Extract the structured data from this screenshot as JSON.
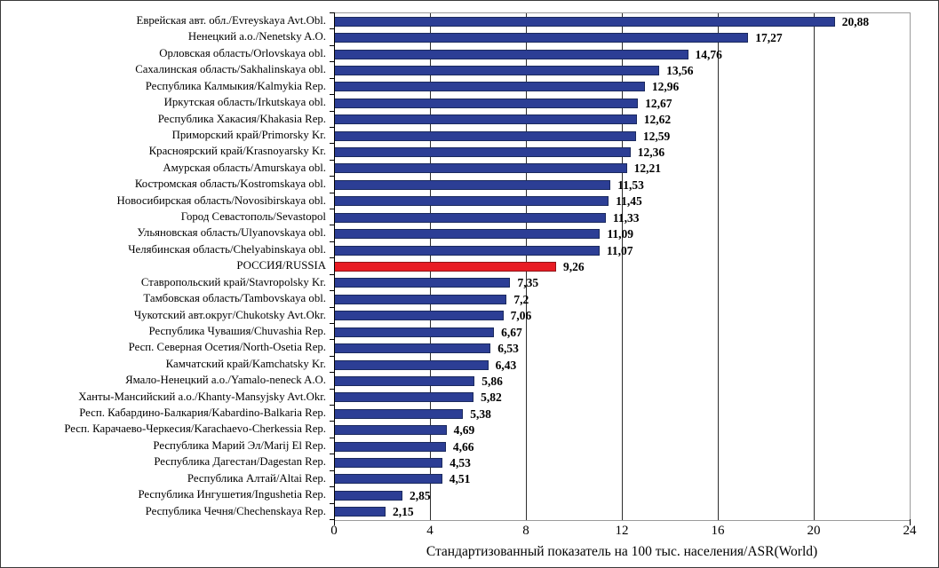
{
  "chart_data": {
    "type": "bar",
    "orientation": "horizontal",
    "title": "",
    "xlabel": "Стандартизованный показатель на 100 тыс. населения/ASR(World)",
    "xlim": [
      0,
      24
    ],
    "xticks": [
      0,
      4,
      8,
      12,
      16,
      20,
      24
    ],
    "grid": "vertical-gridlines-at-ticks",
    "legend": "none",
    "decimal_separator": ",",
    "bar_color": "#2c3e95",
    "bar_border_color": "#1b2a5e",
    "highlight_color": "#e81c24",
    "highlight_border_color": "#8f1418",
    "highlight_category": "РОССИЯ/RUSSIA",
    "rows": [
      {
        "label": "Еврейская авт. обл./Evreyskaya Avt.Obl.",
        "value": 20.88,
        "value_label": "20,88",
        "highlight": false
      },
      {
        "label": "Ненецкий а.о./Nenetsky A.O.",
        "value": 17.27,
        "value_label": "17,27",
        "highlight": false
      },
      {
        "label": "Орловская область/Orlovskaya obl.",
        "value": 14.76,
        "value_label": "14,76",
        "highlight": false
      },
      {
        "label": "Сахалинская область/Sakhalinskaya obl.",
        "value": 13.56,
        "value_label": "13,56",
        "highlight": false
      },
      {
        "label": "Республика Калмыкия/Kalmykia Rep.",
        "value": 12.96,
        "value_label": "12,96",
        "highlight": false
      },
      {
        "label": "Иркутская область/Irkutskaya obl.",
        "value": 12.67,
        "value_label": "12,67",
        "highlight": false
      },
      {
        "label": "Республика Хакасия/Khakasia Rep.",
        "value": 12.62,
        "value_label": "12,62",
        "highlight": false
      },
      {
        "label": "Приморский край/Primorsky Kr.",
        "value": 12.59,
        "value_label": "12,59",
        "highlight": false
      },
      {
        "label": "Красноярский край/Krasnoyarsky Kr.",
        "value": 12.36,
        "value_label": "12,36",
        "highlight": false
      },
      {
        "label": "Амурская область/Amurskaya obl.",
        "value": 12.21,
        "value_label": "12,21",
        "highlight": false
      },
      {
        "label": "Костромская область/Kostromskaya obl.",
        "value": 11.53,
        "value_label": "11,53",
        "highlight": false
      },
      {
        "label": "Новосибирская область/Novosibirskaya obl.",
        "value": 11.45,
        "value_label": "11,45",
        "highlight": false
      },
      {
        "label": "Город Севастополь/Sevastopol",
        "value": 11.33,
        "value_label": "11,33",
        "highlight": false
      },
      {
        "label": "Ульяновская область/Ulyanovskaya obl.",
        "value": 11.09,
        "value_label": "11,09",
        "highlight": false
      },
      {
        "label": "Челябинская область/Chelyabinskaya obl.",
        "value": 11.07,
        "value_label": "11,07",
        "highlight": false
      },
      {
        "label": "РОССИЯ/RUSSIA",
        "value": 9.26,
        "value_label": "9,26",
        "highlight": true
      },
      {
        "label": "Ставропольский край/Stavropolsky Kr.",
        "value": 7.35,
        "value_label": "7,35",
        "highlight": false
      },
      {
        "label": "Тамбовская область/Tambovskaya obl.",
        "value": 7.2,
        "value_label": "7,2",
        "highlight": false
      },
      {
        "label": "Чукотский авт.округ/Chukotsky Avt.Okr.",
        "value": 7.06,
        "value_label": "7,06",
        "highlight": false
      },
      {
        "label": "Республика Чувашия/Chuvashia Rep.",
        "value": 6.67,
        "value_label": "6,67",
        "highlight": false
      },
      {
        "label": "Респ. Северная Осетия/North-Osetia Rep.",
        "value": 6.53,
        "value_label": "6,53",
        "highlight": false
      },
      {
        "label": "Камчатский край/Kamchatsky Kr.",
        "value": 6.43,
        "value_label": "6,43",
        "highlight": false
      },
      {
        "label": "Ямало-Ненецкий а.о./Yamalo-neneck A.O.",
        "value": 5.86,
        "value_label": "5,86",
        "highlight": false
      },
      {
        "label": "Ханты-Мансийский а.о./Khanty-Mansyjsky Avt.Okr.",
        "value": 5.82,
        "value_label": "5,82",
        "highlight": false
      },
      {
        "label": "Респ. Кабардино-Балкария/Kabardino-Balkaria Rep.",
        "value": 5.38,
        "value_label": "5,38",
        "highlight": false
      },
      {
        "label": "Респ. Карачаево-Черкесия/Karachaevo-Cherkessia Rep.",
        "value": 4.69,
        "value_label": "4,69",
        "highlight": false
      },
      {
        "label": "Республика Марий Эл/Marij El Rep.",
        "value": 4.66,
        "value_label": "4,66",
        "highlight": false
      },
      {
        "label": "Республика Дагестан/Dagestan Rep.",
        "value": 4.53,
        "value_label": "4,53",
        "highlight": false
      },
      {
        "label": "Республика Алтай/Altai Rep.",
        "value": 4.51,
        "value_label": "4,51",
        "highlight": false
      },
      {
        "label": "Республика Ингушетия/Ingushetia Rep.",
        "value": 2.85,
        "value_label": "2,85",
        "highlight": false
      },
      {
        "label": "Республика Чечня/Chechenskaya Rep.",
        "value": 2.15,
        "value_label": "2,15",
        "highlight": false
      }
    ]
  }
}
